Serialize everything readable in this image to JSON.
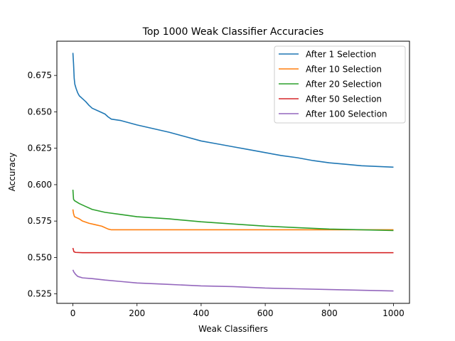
{
  "chart_data": {
    "type": "line",
    "title": "Top 1000 Weak Classifier Accuracies",
    "xlabel": "Weak Classifiers",
    "ylabel": "Accuracy",
    "xlim": [
      -50,
      1050
    ],
    "ylim": [
      0.5185,
      0.6985
    ],
    "xticks": [
      0,
      200,
      400,
      600,
      800,
      1000
    ],
    "yticks": [
      0.525,
      0.55,
      0.575,
      0.6,
      0.625,
      0.65,
      0.675
    ],
    "ytick_labels": [
      "0.525",
      "0.550",
      "0.575",
      "0.600",
      "0.625",
      "0.650",
      "0.675"
    ],
    "grid": false,
    "legend_position": "top-right",
    "series": [
      {
        "name": "After 1 Selection",
        "color": "#1f77b4",
        "points": [
          [
            0,
            0.6905
          ],
          [
            2,
            0.683
          ],
          [
            4,
            0.673
          ],
          [
            6,
            0.669
          ],
          [
            10,
            0.666
          ],
          [
            15,
            0.663
          ],
          [
            20,
            0.661
          ],
          [
            30,
            0.659
          ],
          [
            40,
            0.657
          ],
          [
            50,
            0.6545
          ],
          [
            60,
            0.6525
          ],
          [
            80,
            0.6505
          ],
          [
            100,
            0.6485
          ],
          [
            110,
            0.6465
          ],
          [
            120,
            0.645
          ],
          [
            150,
            0.644
          ],
          [
            200,
            0.641
          ],
          [
            250,
            0.6385
          ],
          [
            300,
            0.636
          ],
          [
            350,
            0.633
          ],
          [
            400,
            0.63
          ],
          [
            450,
            0.628
          ],
          [
            500,
            0.626
          ],
          [
            550,
            0.624
          ],
          [
            600,
            0.622
          ],
          [
            650,
            0.62
          ],
          [
            700,
            0.6185
          ],
          [
            750,
            0.6165
          ],
          [
            800,
            0.615
          ],
          [
            850,
            0.614
          ],
          [
            900,
            0.613
          ],
          [
            950,
            0.6125
          ],
          [
            1000,
            0.612
          ]
        ]
      },
      {
        "name": "After 10 Selection",
        "color": "#ff7f0e",
        "points": [
          [
            0,
            0.583
          ],
          [
            2,
            0.58
          ],
          [
            5,
            0.578
          ],
          [
            10,
            0.5775
          ],
          [
            20,
            0.5765
          ],
          [
            30,
            0.575
          ],
          [
            50,
            0.5735
          ],
          [
            70,
            0.5725
          ],
          [
            90,
            0.5715
          ],
          [
            110,
            0.5695
          ],
          [
            120,
            0.569
          ],
          [
            200,
            0.569
          ],
          [
            400,
            0.569
          ],
          [
            600,
            0.569
          ],
          [
            800,
            0.569
          ],
          [
            1000,
            0.569
          ]
        ]
      },
      {
        "name": "After 20 Selection",
        "color": "#2ca02c",
        "points": [
          [
            0,
            0.5965
          ],
          [
            2,
            0.59
          ],
          [
            5,
            0.589
          ],
          [
            20,
            0.587
          ],
          [
            40,
            0.585
          ],
          [
            60,
            0.583
          ],
          [
            100,
            0.581
          ],
          [
            150,
            0.5795
          ],
          [
            200,
            0.578
          ],
          [
            300,
            0.5765
          ],
          [
            400,
            0.5745
          ],
          [
            500,
            0.573
          ],
          [
            600,
            0.5715
          ],
          [
            700,
            0.5705
          ],
          [
            800,
            0.5695
          ],
          [
            900,
            0.569
          ],
          [
            1000,
            0.5685
          ]
        ]
      },
      {
        "name": "After 50 Selection",
        "color": "#d62728",
        "points": [
          [
            0,
            0.5565
          ],
          [
            3,
            0.554
          ],
          [
            8,
            0.5535
          ],
          [
            30,
            0.5533
          ],
          [
            200,
            0.5533
          ],
          [
            400,
            0.5533
          ],
          [
            600,
            0.5533
          ],
          [
            800,
            0.5533
          ],
          [
            1000,
            0.5533
          ]
        ]
      },
      {
        "name": "After 100 Selection",
        "color": "#9467bd",
        "points": [
          [
            0,
            0.5415
          ],
          [
            3,
            0.54
          ],
          [
            8,
            0.5385
          ],
          [
            15,
            0.537
          ],
          [
            30,
            0.536
          ],
          [
            60,
            0.5355
          ],
          [
            100,
            0.5345
          ],
          [
            150,
            0.5335
          ],
          [
            200,
            0.5325
          ],
          [
            300,
            0.5315
          ],
          [
            400,
            0.5305
          ],
          [
            500,
            0.53
          ],
          [
            600,
            0.529
          ],
          [
            700,
            0.5285
          ],
          [
            800,
            0.528
          ],
          [
            900,
            0.5275
          ],
          [
            1000,
            0.527
          ]
        ]
      }
    ]
  }
}
